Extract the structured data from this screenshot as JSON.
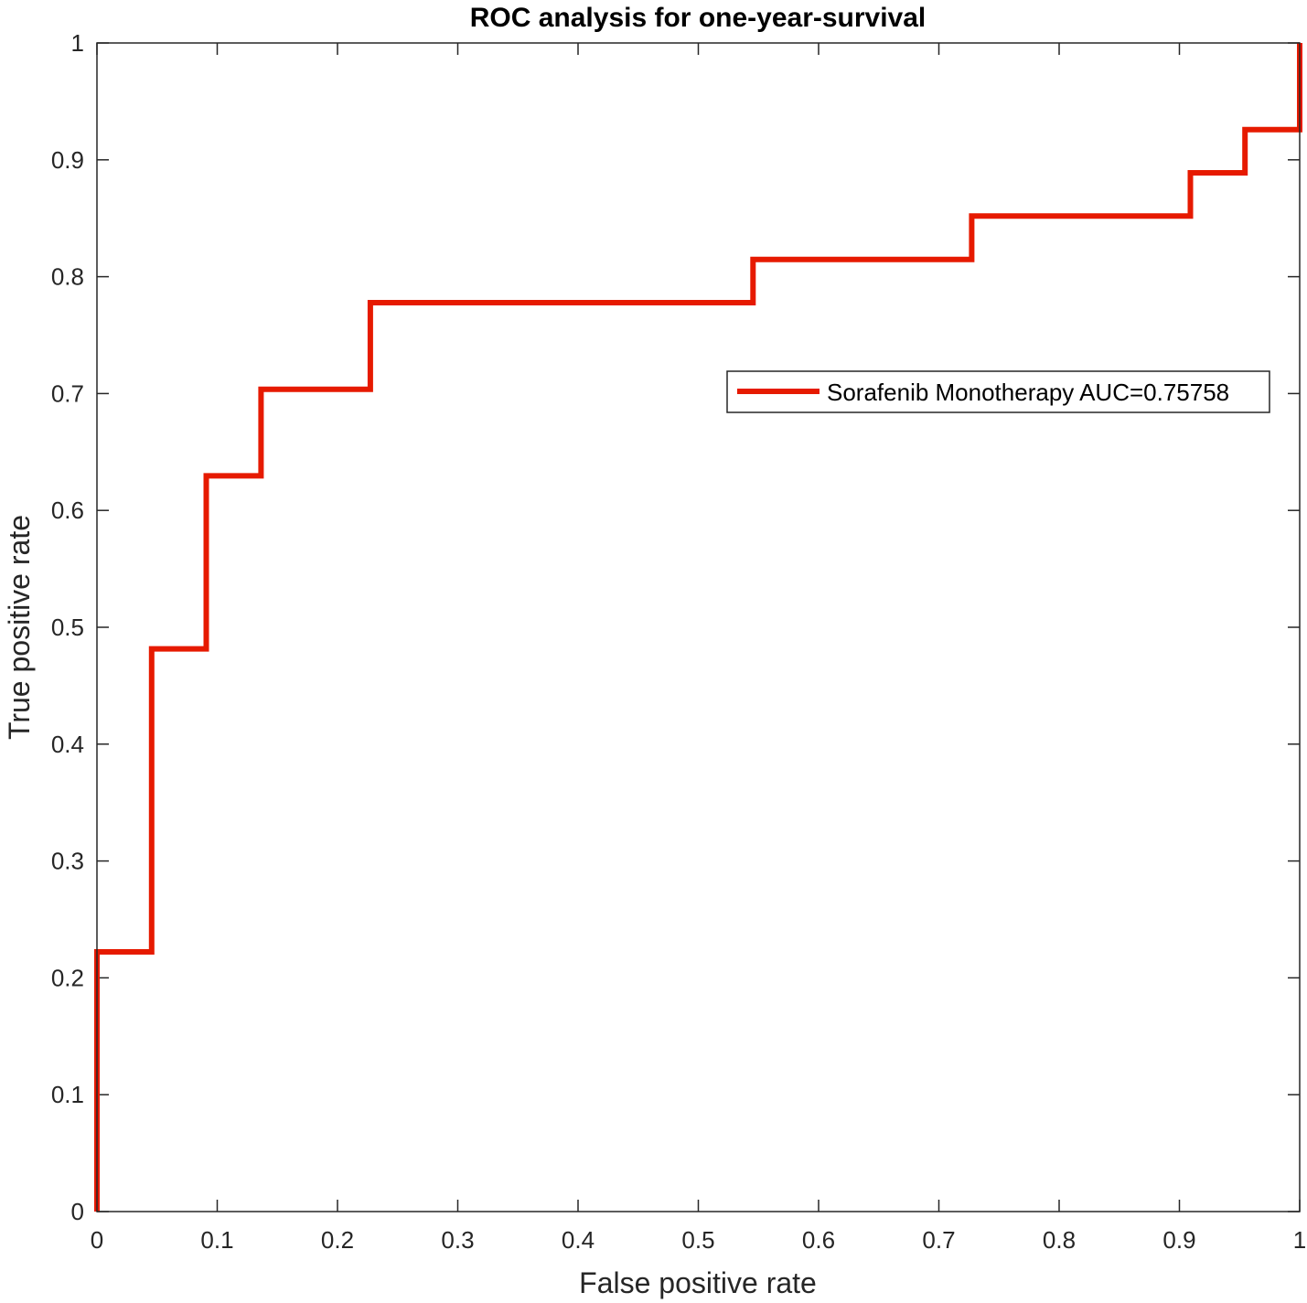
{
  "chart_data": {
    "type": "line",
    "title": "ROC analysis for one-year-survival",
    "xlabel": "False positive rate",
    "ylabel": "True positive rate",
    "xlim": [
      0,
      1
    ],
    "ylim": [
      0,
      1
    ],
    "xticks": [
      0,
      0.1,
      0.2,
      0.3,
      0.4,
      0.5,
      0.6,
      0.7,
      0.8,
      0.9,
      1
    ],
    "yticks": [
      0,
      0.1,
      0.2,
      0.3,
      0.4,
      0.5,
      0.6,
      0.7,
      0.8,
      0.9,
      1
    ],
    "xtick_labels": [
      "0",
      "0.1",
      "0.2",
      "0.3",
      "0.4",
      "0.5",
      "0.6",
      "0.7",
      "0.8",
      "0.9",
      "1"
    ],
    "ytick_labels": [
      "0",
      "0.1",
      "0.2",
      "0.3",
      "0.4",
      "0.5",
      "0.6",
      "0.7",
      "0.8",
      "0.9",
      "1"
    ],
    "grid": false,
    "legend_position": "upper-right",
    "series": [
      {
        "name": "Sorafenib Monotherapy AUC=0.75758",
        "color": "#e61a00",
        "x": [
          0,
          0,
          0.0455,
          0.0455,
          0.0909,
          0.0909,
          0.1364,
          0.1364,
          0.2273,
          0.2273,
          0.5455,
          0.5455,
          0.7273,
          0.7273,
          0.9091,
          0.9091,
          0.9545,
          0.9545,
          1,
          1
        ],
        "y": [
          0,
          0.2222,
          0.2222,
          0.4815,
          0.4815,
          0.6296,
          0.6296,
          0.7037,
          0.7037,
          0.7778,
          0.7778,
          0.8148,
          0.8148,
          0.8519,
          0.8519,
          0.8889,
          0.8889,
          0.9259,
          0.9259,
          1
        ]
      }
    ]
  }
}
